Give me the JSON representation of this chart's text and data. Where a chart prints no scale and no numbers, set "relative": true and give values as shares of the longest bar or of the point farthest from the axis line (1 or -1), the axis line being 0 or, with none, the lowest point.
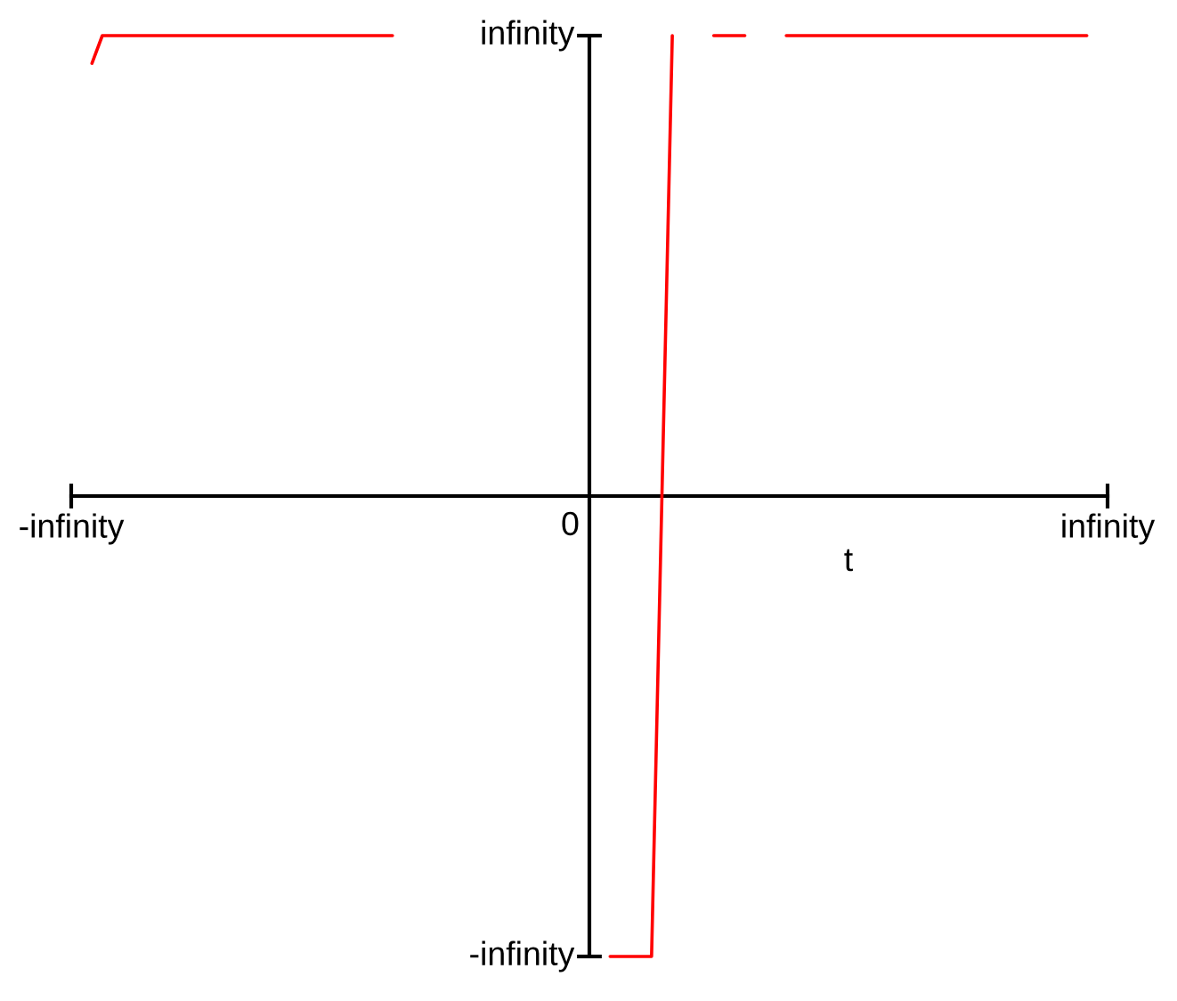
{
  "chart_data": {
    "type": "line",
    "xlabel": "t",
    "relative": true,
    "categories": [
      "-infinity",
      null,
      null,
      null,
      null,
      null,
      null,
      null,
      null,
      null,
      null,
      null,
      null,
      null,
      null,
      null,
      null,
      null,
      null,
      null,
      null,
      null,
      null,
      null,
      null,
      null,
      null,
      null,
      null,
      null,
      null,
      null,
      null,
      null,
      null,
      null,
      null,
      null,
      null,
      null,
      null,
      null,
      null,
      null,
      null,
      null,
      null,
      null,
      null,
      null,
      null,
      null,
      null,
      null,
      null,
      null,
      null,
      null,
      null,
      null,
      null,
      null,
      null,
      null,
      null,
      null,
      null,
      null,
      null,
      null,
      null,
      null,
      null,
      null,
      null,
      null,
      null,
      null,
      null,
      null,
      null,
      null,
      null,
      null,
      null,
      null,
      null,
      null,
      null,
      null,
      null,
      null,
      null,
      null,
      null,
      null,
      null,
      null,
      null,
      null,
      "infinity"
    ],
    "series": [
      {
        "color": "#ff0000",
        "values": [
          null,
          null,
          0.94,
          1,
          1,
          1,
          1,
          1,
          1,
          1,
          1,
          1,
          1,
          1,
          1,
          1,
          1,
          1,
          1,
          1,
          1,
          1,
          1,
          1,
          1,
          1,
          1,
          1,
          1,
          1,
          1,
          1,
          null,
          null,
          null,
          null,
          null,
          null,
          null,
          null,
          null,
          null,
          null,
          null,
          null,
          null,
          null,
          null,
          null,
          null,
          null,
          null,
          -1,
          -1,
          -1,
          -1,
          -1,
          0,
          1,
          null,
          null,
          null,
          1,
          1,
          1,
          1,
          null,
          null,
          null,
          1,
          1,
          1,
          1,
          1,
          1,
          1,
          1,
          1,
          1,
          1,
          1,
          1,
          1,
          1,
          1,
          1,
          1,
          1,
          1,
          1,
          1,
          1,
          1,
          1,
          1,
          1,
          1,
          1,
          1,
          null,
          null
        ]
      }
    ],
    "annotations": [
      "infinity",
      "0",
      "-infinity"
    ],
    "line_style": "solid"
  }
}
